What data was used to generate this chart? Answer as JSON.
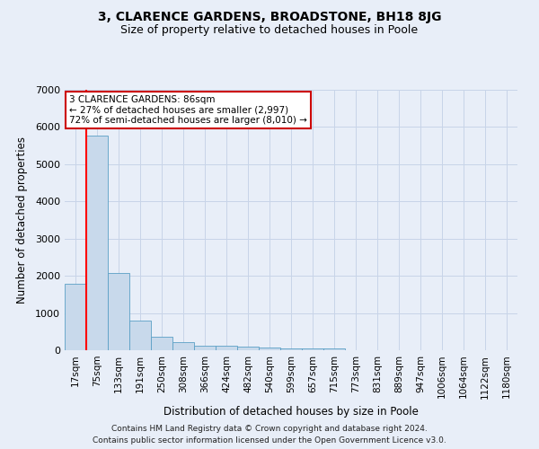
{
  "title": "3, CLARENCE GARDENS, BROADSTONE, BH18 8JG",
  "subtitle": "Size of property relative to detached houses in Poole",
  "xlabel": "Distribution of detached houses by size in Poole",
  "ylabel": "Number of detached properties",
  "bar_labels": [
    "17sqm",
    "75sqm",
    "133sqm",
    "191sqm",
    "250sqm",
    "308sqm",
    "366sqm",
    "424sqm",
    "482sqm",
    "540sqm",
    "599sqm",
    "657sqm",
    "715sqm",
    "773sqm",
    "831sqm",
    "889sqm",
    "947sqm",
    "1006sqm",
    "1064sqm",
    "1122sqm",
    "1180sqm"
  ],
  "bar_values": [
    1780,
    5780,
    2070,
    800,
    370,
    220,
    130,
    120,
    90,
    70,
    60,
    50,
    45,
    0,
    0,
    0,
    0,
    0,
    0,
    0,
    0
  ],
  "bar_color": "#c8d9eb",
  "bar_edge_color": "#5a9fc5",
  "annotation_text": "3 CLARENCE GARDENS: 86sqm\n← 27% of detached houses are smaller (2,997)\n72% of semi-detached houses are larger (8,010) →",
  "annotation_box_facecolor": "#ffffff",
  "annotation_border_color": "#cc0000",
  "red_line_x": 0.5,
  "ylim": [
    0,
    7000
  ],
  "yticks": [
    0,
    1000,
    2000,
    3000,
    4000,
    5000,
    6000,
    7000
  ],
  "grid_color": "#c8d4e8",
  "footer_text": "Contains HM Land Registry data © Crown copyright and database right 2024.\nContains public sector information licensed under the Open Government Licence v3.0.",
  "bg_color": "#e8eef8",
  "plot_bg_color": "#e8eef8",
  "title_fontsize": 10,
  "subtitle_fontsize": 9,
  "tick_fontsize": 7.5,
  "ylabel_fontsize": 8.5,
  "xlabel_fontsize": 8.5,
  "annotation_fontsize": 7.5,
  "footer_fontsize": 6.5
}
